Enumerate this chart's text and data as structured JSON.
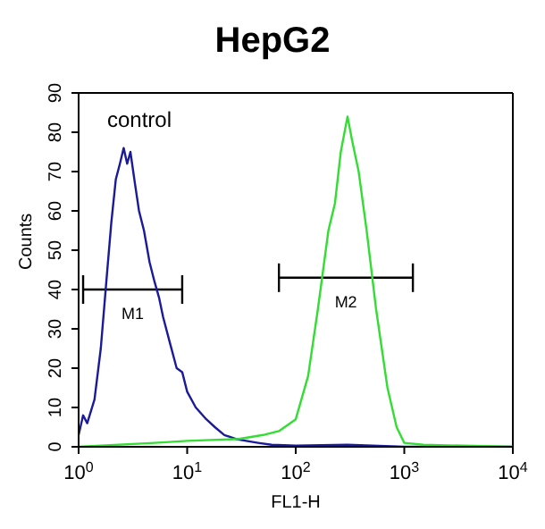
{
  "chart_data": {
    "type": "line",
    "title": "HepG2",
    "xlabel": "FL1-H",
    "ylabel": "Counts",
    "log": "x",
    "grid": false,
    "legend": false,
    "marker": "none",
    "line_style": "solid",
    "xlim": [
      1,
      10000
    ],
    "xticks": [
      {
        "value": 1,
        "label": "10$^{0}$"
      },
      {
        "value": 10,
        "label": "10$^{1}$"
      },
      {
        "value": 100,
        "label": "10$^{2}$"
      },
      {
        "value": 1000,
        "label": "10$^{3}$"
      },
      {
        "value": 10000,
        "label": "10$^{4}$"
      }
    ],
    "ylim": [
      0,
      90
    ],
    "yticks": [
      0,
      10,
      20,
      30,
      40,
      50,
      60,
      70,
      80,
      90
    ],
    "annotations": [
      "control"
    ],
    "series": [
      {
        "name": "M1",
        "color": "#000000",
        "x": [
          1.1,
          9
        ],
        "values": [
          40,
          40
        ]
      },
      {
        "name": "M2",
        "color": "#000000",
        "x": [
          70,
          1200
        ],
        "values": [
          43,
          43
        ]
      },
      {
        "color": "#1a1a9a",
        "x": [
          1,
          1.1,
          1.2,
          1.4,
          1.6,
          1.8,
          2,
          2.2,
          2.4,
          2.6,
          2.8,
          3,
          3.3,
          3.6,
          4,
          4.5,
          5,
          5.5,
          6,
          7,
          8,
          9,
          10,
          12,
          15,
          18,
          22,
          28,
          35,
          45,
          60,
          100,
          300,
          1000,
          10000
        ],
        "values": [
          3,
          8,
          6,
          12,
          25,
          42,
          57,
          68,
          72,
          76,
          72,
          75,
          67,
          60,
          55,
          47,
          42,
          38,
          33,
          26,
          20,
          19,
          14,
          10,
          7,
          5,
          3,
          2,
          1.5,
          1,
          0.5,
          0.3,
          0.5,
          0,
          0
        ]
      },
      {
        "color": "#33dd33",
        "x": [
          1,
          5,
          10,
          30,
          50,
          70,
          100,
          130,
          160,
          200,
          230,
          260,
          300,
          330,
          380,
          450,
          550,
          700,
          850,
          1000,
          1500,
          10000
        ],
        "values": [
          0,
          1,
          1.5,
          2,
          3,
          4,
          7,
          18,
          35,
          55,
          62,
          75,
          84,
          78,
          70,
          55,
          35,
          15,
          5,
          1,
          0.5,
          0
        ]
      }
    ]
  }
}
